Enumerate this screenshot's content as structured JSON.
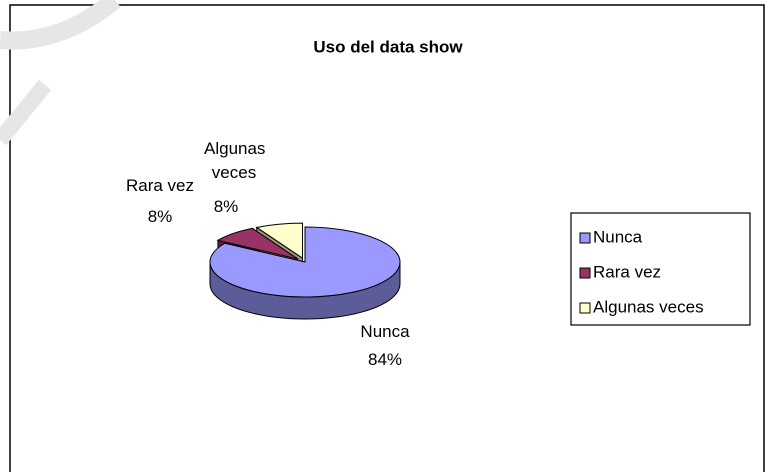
{
  "chart_data": {
    "type": "pie",
    "title": "Uso del data show",
    "categories": [
      "Nunca",
      "Rara vez",
      "Algunas veces"
    ],
    "values": [
      84,
      8,
      8
    ],
    "value_labels": [
      "84%",
      "8%",
      "8%"
    ],
    "colors": [
      "#9999ff",
      "#993366",
      "#ffffcc"
    ],
    "legend": "right"
  }
}
